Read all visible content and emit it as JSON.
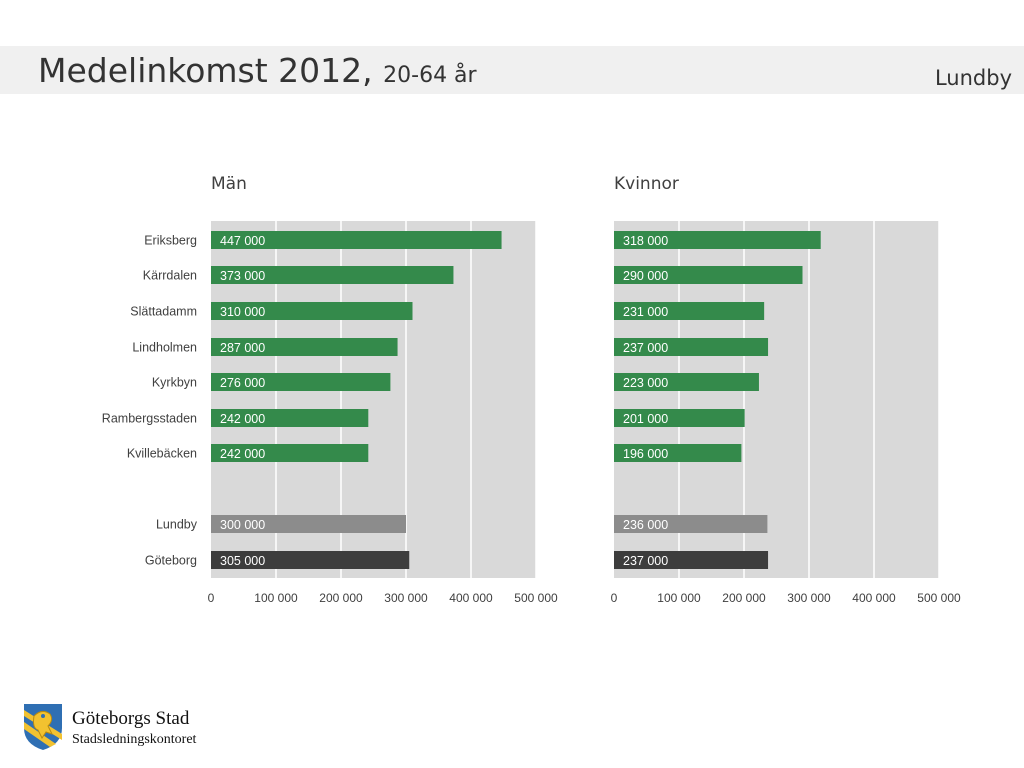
{
  "header": {
    "title": "Medelinkomst 2012,",
    "subtitle": "20-64 år",
    "district": "Lundby"
  },
  "colors": {
    "bar_area": "#348a4b",
    "bar_district": "#8c8c8c",
    "bar_city": "#3d3d3d",
    "plot_bg": "#d9d9d9",
    "gridline": "#ffffff"
  },
  "chart_data": [
    {
      "type": "bar",
      "orientation": "horizontal",
      "title": "Män",
      "categories": [
        "Eriksberg",
        "Kärrdalen",
        "Slättadamm",
        "Lindholmen",
        "Kyrkbyn",
        "Rambergsstaden",
        "Kvillebäcken",
        "Lundby",
        "Göteborg"
      ],
      "values": [
        447000,
        373000,
        310000,
        287000,
        276000,
        242000,
        242000,
        300000,
        305000
      ],
      "value_labels": [
        "447 000",
        "373 000",
        "310 000",
        "287 000",
        "276 000",
        "242 000",
        "242 000",
        "300 000",
        "305 000"
      ],
      "xlim": [
        0,
        500000
      ],
      "xticks": [
        0,
        100000,
        200000,
        300000,
        400000,
        500000
      ],
      "xtick_labels": [
        "0",
        "100 000",
        "200 000",
        "300 000",
        "400 000",
        "500 000"
      ],
      "grid": true
    },
    {
      "type": "bar",
      "orientation": "horizontal",
      "title": "Kvinnor",
      "categories": [
        "Eriksberg",
        "Kärrdalen",
        "Slättadamm",
        "Lindholmen",
        "Kyrkbyn",
        "Rambergsstaden",
        "Kvillebäcken",
        "Lundby",
        "Göteborg"
      ],
      "values": [
        318000,
        290000,
        231000,
        237000,
        223000,
        201000,
        196000,
        236000,
        237000
      ],
      "value_labels": [
        "318 000",
        "290 000",
        "231 000",
        "237 000",
        "223 000",
        "201 000",
        "196 000",
        "236 000",
        "237 000"
      ],
      "xlim": [
        0,
        500000
      ],
      "xticks": [
        0,
        100000,
        200000,
        300000,
        400000,
        500000
      ],
      "xtick_labels": [
        "0",
        "100 000",
        "200 000",
        "300 000",
        "400 000",
        "500 000"
      ],
      "grid": true
    }
  ],
  "logo": {
    "name": "Göteborgs Stad",
    "department": "Stadsledningskontoret"
  }
}
